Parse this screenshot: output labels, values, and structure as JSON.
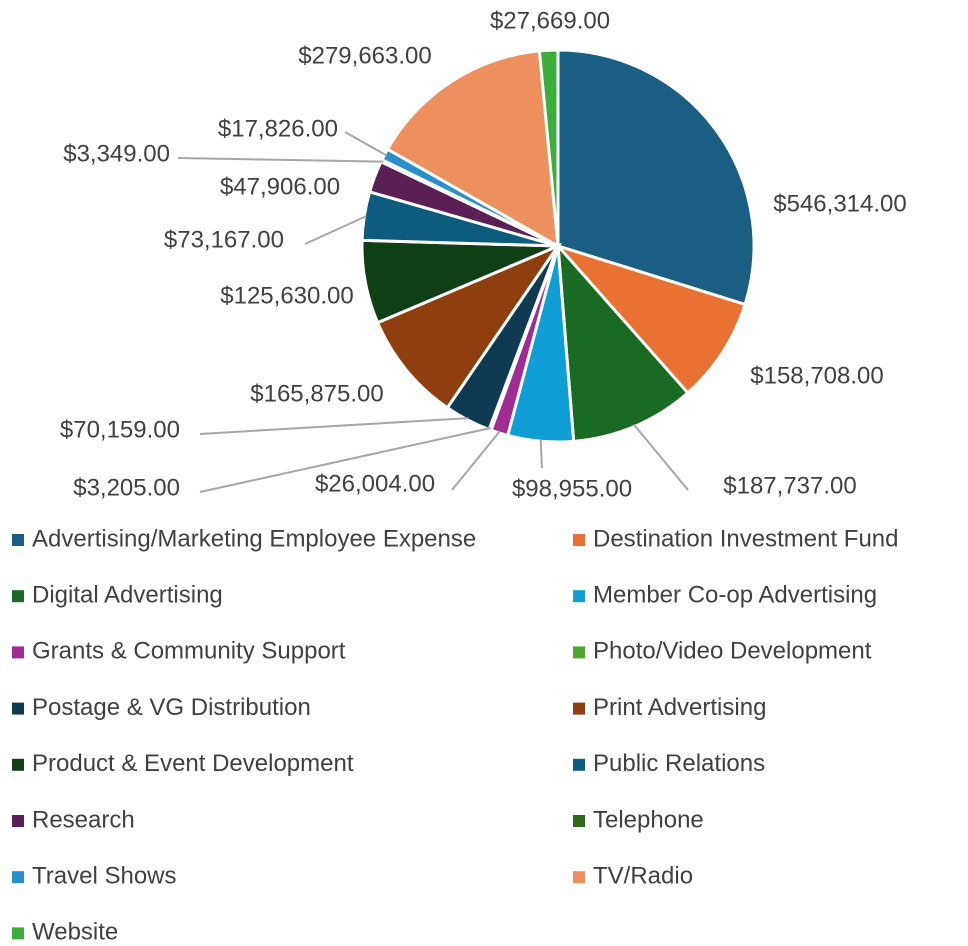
{
  "chart_data": {
    "type": "pie",
    "categories": [
      "Advertising/Marketing Employee Expense",
      "Destination Investment Fund",
      "Digital Advertising",
      "Member Co-op Advertising",
      "Grants & Community Support",
      "Photo/Video Development",
      "Postage & VG Distribution",
      "Print Advertising",
      "Product & Event Development",
      "Public Relations",
      "Research",
      "Telephone",
      "Travel Shows",
      "TV/Radio",
      "Website"
    ],
    "values": [
      546314,
      158708,
      187737,
      98955,
      26004,
      3205,
      70159,
      165875,
      125630,
      73167,
      47906,
      3349,
      17826,
      279663,
      27669
    ],
    "value_labels": [
      "$546,314.00",
      "$158,708.00",
      "$187,737.00",
      "$98,955.00",
      "$26,004.00",
      "$3,205.00",
      "$70,159.00",
      "$165,875.00",
      "$125,630.00",
      "$73,167.00",
      "$47,906.00",
      "$3,349.00",
      "$17,826.00",
      "$279,663.00",
      "$27,669.00"
    ],
    "colors": [
      "#1a5e83",
      "#e97132",
      "#196b24",
      "#0f9ed5",
      "#a02b93",
      "#4ea72e",
      "#0e3b52",
      "#8f3e0e",
      "#0f3f15",
      "#0d5b7d",
      "#5a1f54",
      "#2e6a1c",
      "#2a8fcc",
      "#ee8f5e",
      "#3aad3a"
    ],
    "legend": "bottom"
  }
}
